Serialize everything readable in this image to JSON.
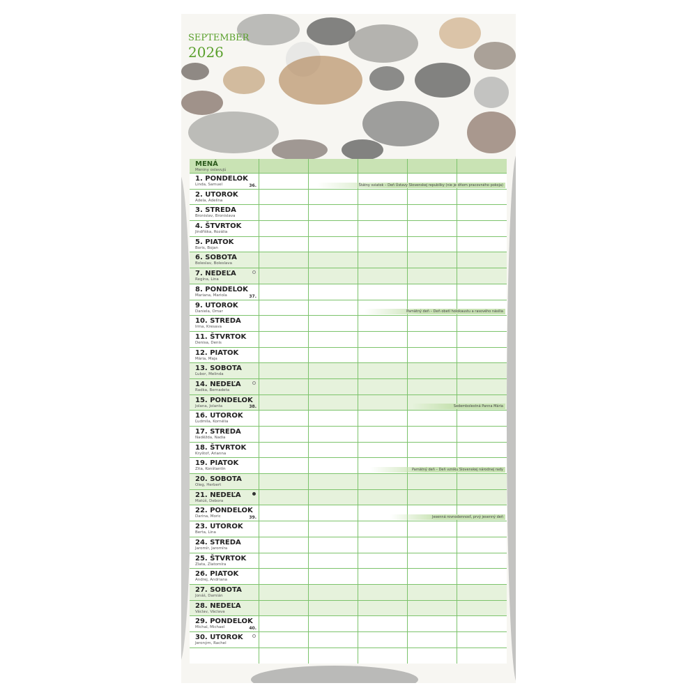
{
  "month": "SEPTEMBER",
  "year": "2026",
  "header": {
    "label": "MENÁ",
    "sublabel": "Meniny oslavujú"
  },
  "colors": {
    "accent": "#5aa02c",
    "grid": "#7cc36b",
    "header_bg": "#c9e3b4",
    "weekend_bg": "#e6f2dc"
  },
  "days": [
    {
      "label": "1. PONDELOK",
      "names": "Linda, Samuel",
      "week": "36.",
      "note": "Štátny sviatok – Deň Ústavy Slovenskej republiky (nie je dňom pracovného pokoja)"
    },
    {
      "label": "2. UTOROK",
      "names": "Adela, Adelína"
    },
    {
      "label": "3. STREDA",
      "names": "Bronislav, Bronislava"
    },
    {
      "label": "4. ŠTVRTOK",
      "names": "Jindřiška, Rozália"
    },
    {
      "label": "5. PIATOK",
      "names": "Boris, Bojan"
    },
    {
      "label": "6. SOBOTA",
      "names": "Boleslav, Boleslava",
      "weekend": true
    },
    {
      "label": "7. NEDEĽA",
      "names": "Regína, Lina",
      "weekend": true,
      "moon": "first-quarter"
    },
    {
      "label": "8. PONDELOK",
      "names": "Mariana, Mariola",
      "week": "37."
    },
    {
      "label": "9. UTOROK",
      "names": "Daniela, Omar",
      "note": "Pamätný deň – Deň obetí holokaustu a rasového násilia"
    },
    {
      "label": "10. STREDA",
      "names": "Irma, Kresava"
    },
    {
      "label": "11. ŠTVRTOK",
      "names": "Denisa, Denis"
    },
    {
      "label": "12. PIATOK",
      "names": "Mária, Maja"
    },
    {
      "label": "13. SOBOTA",
      "names": "Ľubor, Melinda",
      "weekend": true
    },
    {
      "label": "14. NEDEĽA",
      "names": "Radka, Bernadeta",
      "weekend": true,
      "moon": "last-quarter"
    },
    {
      "label": "15. PONDELOK",
      "names": "Jolana, Jolanta",
      "week": "38.",
      "weekend": true,
      "note": "Sedembolestná Panna Mária"
    },
    {
      "label": "16. UTOROK",
      "names": "Ľudmila, Kornélia"
    },
    {
      "label": "17. STREDA",
      "names": "Naděžda, Nadia"
    },
    {
      "label": "18. ŠTVRTOK",
      "names": "Kryštof, Arianna"
    },
    {
      "label": "19. PIATOK",
      "names": "Zita, Konštantín",
      "note": "Pamätný deň – Deň vzniku Slovenskej národnej rady"
    },
    {
      "label": "20. SOBOTA",
      "names": "Oleg, Herbert",
      "weekend": true
    },
    {
      "label": "21. NEDEĽA",
      "names": "Matúš, Debora",
      "weekend": true,
      "moon": "full"
    },
    {
      "label": "22. PONDELOK",
      "names": "Darina, Moric",
      "week": "39.",
      "note": "Jesenná rovnodennosť, prvý jesenný deň"
    },
    {
      "label": "23. UTOROK",
      "names": "Berta, Lina"
    },
    {
      "label": "24. STREDA",
      "names": "Jaromír, Jaromíra"
    },
    {
      "label": "25. ŠTVRTOK",
      "names": "Zlata, Zlatomíra"
    },
    {
      "label": "26. PIATOK",
      "names": "Andrej, Andriana"
    },
    {
      "label": "27. SOBOTA",
      "names": "Jonáš, Damián",
      "weekend": true
    },
    {
      "label": "28. NEDEĽA",
      "names": "Václav, Václava",
      "weekend": true
    },
    {
      "label": "29. PONDELOK",
      "names": "Michal, Michael",
      "week": "40."
    },
    {
      "label": "30. UTOROK",
      "names": "Jeroným, Rachel",
      "moon": "first-quarter"
    }
  ]
}
